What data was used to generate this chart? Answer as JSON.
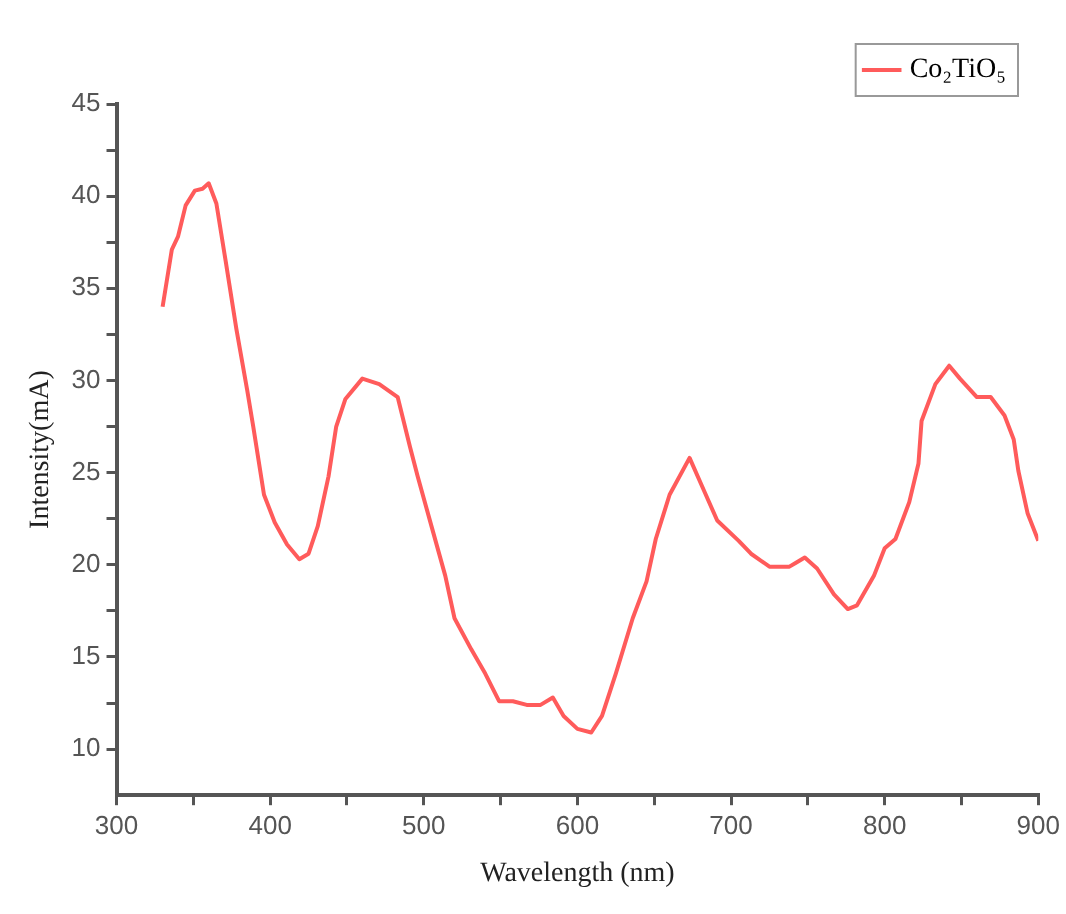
{
  "chart_data": {
    "type": "line",
    "xlabel": "Wavelength (nm)",
    "ylabel": "Intensity(mA)",
    "x": [
      330,
      336,
      340,
      345,
      351,
      356,
      360,
      365,
      371,
      378,
      385,
      389,
      396,
      403,
      411,
      419,
      425,
      431,
      438,
      443,
      449,
      460,
      471,
      483,
      491,
      496,
      505,
      514,
      520,
      531,
      540,
      549,
      558,
      567,
      576,
      584,
      591,
      600,
      609,
      616,
      625,
      636,
      645,
      651,
      660,
      673,
      682,
      691,
      705,
      713,
      725,
      738,
      742,
      748,
      756,
      767,
      776,
      782,
      793,
      800,
      807,
      816,
      822,
      824,
      833,
      842,
      849,
      860,
      869,
      878,
      884,
      887,
      893,
      900
    ],
    "series": [
      {
        "name": "Co₂TiO₅",
        "color": "#ff5b5b",
        "values": [
          34.0,
          37.1,
          37.8,
          39.5,
          40.3,
          40.4,
          40.7,
          39.6,
          36.5,
          32.8,
          29.5,
          27.5,
          23.8,
          22.3,
          21.1,
          20.3,
          20.6,
          22.1,
          24.8,
          27.5,
          29.0,
          30.1,
          29.8,
          29.1,
          26.4,
          24.8,
          22.1,
          19.4,
          17.1,
          15.4,
          14.1,
          12.6,
          12.6,
          12.4,
          12.4,
          12.8,
          11.8,
          11.1,
          10.9,
          11.8,
          14.1,
          17.1,
          19.1,
          21.4,
          23.8,
          25.8,
          24.1,
          22.4,
          21.3,
          20.6,
          19.9,
          19.9,
          20.1,
          20.4,
          19.8,
          18.4,
          17.6,
          17.8,
          19.4,
          20.9,
          21.4,
          23.4,
          25.5,
          27.8,
          29.8,
          30.8,
          30.1,
          29.1,
          29.1,
          28.1,
          26.8,
          25.1,
          22.8,
          21.3
        ]
      }
    ],
    "xlim": [
      300,
      900
    ],
    "xticks": [
      300,
      {
        "value": 350,
        "label": null
      },
      400,
      {
        "value": 450,
        "label": null
      },
      500,
      {
        "value": 550,
        "label": null
      },
      600,
      {
        "value": 650,
        "label": null
      },
      700,
      {
        "value": 750,
        "label": null
      },
      800,
      {
        "value": 850,
        "label": null
      },
      900
    ],
    "ylim": [
      7.5,
      45
    ],
    "yticks": [
      10,
      {
        "value": 12.5,
        "label": null
      },
      15,
      {
        "value": 17.5,
        "label": null
      },
      20,
      {
        "value": 22.5,
        "label": null
      },
      25,
      {
        "value": 27.5,
        "label": null
      },
      30,
      {
        "value": 32.5,
        "label": null
      },
      35,
      {
        "value": 37.5,
        "label": null
      },
      40,
      {
        "value": 42.5,
        "label": null
      },
      45
    ],
    "grid": false,
    "legend": "top right",
    "marker": "none",
    "line_style": "solid"
  }
}
